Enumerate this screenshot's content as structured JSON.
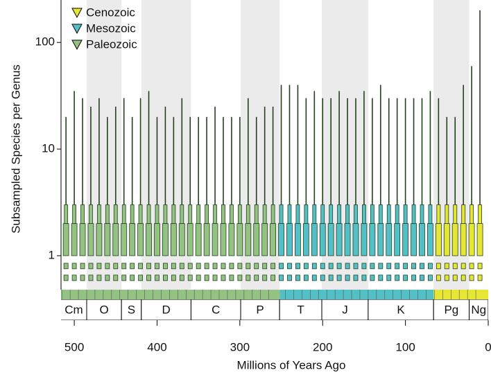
{
  "chart_data": {
    "type": "box-steps",
    "x_label": "Millions of Years Ago",
    "y_label": "Subsampled Species per Genus",
    "xlim": [
      516,
      0
    ],
    "xticks": [
      500,
      400,
      300,
      200,
      100,
      0
    ],
    "ylim": [
      0.48,
      250
    ],
    "yticks": [
      1,
      10,
      100
    ],
    "log_y": true,
    "legend": "top-left",
    "lower_marks": [
      0.62,
      0.8
    ],
    "box_levels": [
      1,
      2,
      3
    ],
    "periods": [
      {
        "label": "Cm",
        "start": 541,
        "end": 485,
        "shaded": false
      },
      {
        "label": "O",
        "start": 485,
        "end": 443,
        "shaded": true
      },
      {
        "label": "S",
        "start": 443,
        "end": 419,
        "shaded": false
      },
      {
        "label": "D",
        "start": 419,
        "end": 359,
        "shaded": true
      },
      {
        "label": "C",
        "start": 359,
        "end": 299,
        "shaded": false
      },
      {
        "label": "P",
        "start": 299,
        "end": 252,
        "shaded": true
      },
      {
        "label": "T",
        "start": 252,
        "end": 201,
        "shaded": false
      },
      {
        "label": "J",
        "start": 201,
        "end": 145,
        "shaded": true
      },
      {
        "label": "K",
        "start": 145,
        "end": 66,
        "shaded": false
      },
      {
        "label": "Pg",
        "start": 66,
        "end": 23,
        "shaded": true
      },
      {
        "label": "Ng",
        "start": 23,
        "end": 0,
        "shaded": false
      }
    ],
    "series": [
      {
        "name": "Cenozoic",
        "color": "#e6e635",
        "span": [
          66,
          0
        ],
        "x": [
          60,
          50,
          40,
          30,
          20,
          10
        ],
        "values": [
          30,
          20,
          20,
          40,
          60,
          200
        ]
      },
      {
        "name": "Mesozoic",
        "color": "#52c0c6",
        "span": [
          252,
          66
        ],
        "x": [
          250,
          240,
          230,
          220,
          210,
          200,
          190,
          180,
          170,
          160,
          150,
          140,
          130,
          120,
          110,
          100,
          90,
          80,
          70
        ],
        "values": [
          40,
          40,
          40,
          30,
          35,
          30,
          30,
          35,
          30,
          30,
          35,
          30,
          40,
          30,
          30,
          30,
          30,
          30,
          35
        ]
      },
      {
        "name": "Paleozoic",
        "color": "#93c283",
        "span": [
          541,
          252
        ],
        "x": [
          510,
          500,
          490,
          480,
          470,
          460,
          450,
          440,
          430,
          420,
          410,
          400,
          390,
          380,
          370,
          360,
          350,
          340,
          330,
          320,
          310,
          300,
          290,
          280,
          270,
          260
        ],
        "values": [
          20,
          35,
          30,
          25,
          30,
          20,
          25,
          30,
          20,
          30,
          35,
          20,
          25,
          20,
          30,
          20,
          20,
          20,
          25,
          20,
          20,
          20,
          30,
          20,
          25,
          25
        ]
      }
    ]
  }
}
